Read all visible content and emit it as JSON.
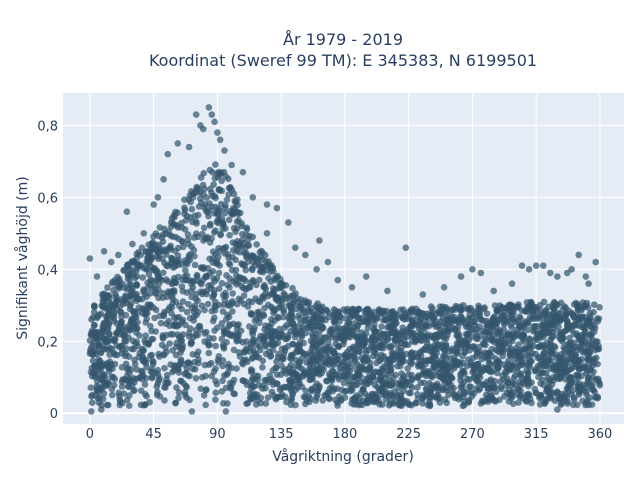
{
  "chart_data": {
    "type": "scatter",
    "title_line1": "År 1979 - 2019",
    "title_line2": "Koordinat (Sweref 99 TM): E 345383, N 6199501",
    "xlabel": "Vågriktning (grader)",
    "ylabel": "Signifikant våghöjd (m)",
    "xlim": [
      -19,
      377
    ],
    "ylim": [
      -0.03,
      0.89
    ],
    "xticks": [
      0,
      45,
      90,
      135,
      180,
      225,
      270,
      315,
      360
    ],
    "xtick_labels": [
      "0",
      "45",
      "90",
      "135",
      "180",
      "225",
      "270",
      "315",
      "360"
    ],
    "yticks": [
      0,
      0.2,
      0.4,
      0.6,
      0.8
    ],
    "ytick_labels": [
      "0",
      "0,2",
      "0,4",
      "0,6",
      "0,8"
    ],
    "grid": true,
    "marker_color": "#34566d",
    "plot_background": "#e5ecf6",
    "envelope": {
      "direction_deg": [
        0,
        15,
        30,
        45,
        60,
        75,
        85,
        90,
        100,
        110,
        120,
        135,
        150,
        165,
        180,
        195,
        225,
        250,
        270,
        290,
        310,
        330,
        345,
        360
      ],
      "max_height_m": [
        0.3,
        0.36,
        0.44,
        0.5,
        0.56,
        0.64,
        0.7,
        0.7,
        0.64,
        0.54,
        0.46,
        0.38,
        0.32,
        0.3,
        0.29,
        0.29,
        0.29,
        0.3,
        0.3,
        0.3,
        0.31,
        0.31,
        0.31,
        0.31
      ],
      "min_height_m": 0.02
    },
    "outlier_points": [
      {
        "x": 75,
        "y": 0.83
      },
      {
        "x": 84,
        "y": 0.85
      },
      {
        "x": 86,
        "y": 0.83
      },
      {
        "x": 88,
        "y": 0.81
      },
      {
        "x": 80,
        "y": 0.79
      },
      {
        "x": 90,
        "y": 0.78
      },
      {
        "x": 70,
        "y": 0.74
      },
      {
        "x": 92,
        "y": 0.76
      },
      {
        "x": 62,
        "y": 0.75
      },
      {
        "x": 55,
        "y": 0.72
      },
      {
        "x": 78,
        "y": 0.8
      },
      {
        "x": 95,
        "y": 0.73
      },
      {
        "x": 108,
        "y": 0.67
      },
      {
        "x": 100,
        "y": 0.69
      },
      {
        "x": 115,
        "y": 0.6
      },
      {
        "x": 125,
        "y": 0.58
      },
      {
        "x": 132,
        "y": 0.57
      },
      {
        "x": 140,
        "y": 0.53
      },
      {
        "x": 145,
        "y": 0.46
      },
      {
        "x": 162,
        "y": 0.48
      },
      {
        "x": 152,
        "y": 0.44
      },
      {
        "x": 168,
        "y": 0.42
      },
      {
        "x": 160,
        "y": 0.4
      },
      {
        "x": 175,
        "y": 0.37
      },
      {
        "x": 185,
        "y": 0.35
      },
      {
        "x": 195,
        "y": 0.38
      },
      {
        "x": 223,
        "y": 0.46
      },
      {
        "x": 210,
        "y": 0.34
      },
      {
        "x": 235,
        "y": 0.33
      },
      {
        "x": 250,
        "y": 0.35
      },
      {
        "x": 262,
        "y": 0.38
      },
      {
        "x": 270,
        "y": 0.4
      },
      {
        "x": 276,
        "y": 0.39
      },
      {
        "x": 285,
        "y": 0.34
      },
      {
        "x": 298,
        "y": 0.36
      },
      {
        "x": 305,
        "y": 0.41
      },
      {
        "x": 310,
        "y": 0.4
      },
      {
        "x": 315,
        "y": 0.41
      },
      {
        "x": 320,
        "y": 0.41
      },
      {
        "x": 325,
        "y": 0.39
      },
      {
        "x": 330,
        "y": 0.38
      },
      {
        "x": 337,
        "y": 0.39
      },
      {
        "x": 340,
        "y": 0.4
      },
      {
        "x": 345,
        "y": 0.44
      },
      {
        "x": 350,
        "y": 0.38
      },
      {
        "x": 357,
        "y": 0.42
      },
      {
        "x": 352,
        "y": 0.36
      },
      {
        "x": 0,
        "y": 0.43
      },
      {
        "x": 5,
        "y": 0.38
      },
      {
        "x": 10,
        "y": 0.45
      },
      {
        "x": 15,
        "y": 0.42
      },
      {
        "x": 20,
        "y": 0.44
      },
      {
        "x": 26,
        "y": 0.56
      },
      {
        "x": 30,
        "y": 0.47
      },
      {
        "x": 38,
        "y": 0.5
      },
      {
        "x": 45,
        "y": 0.58
      },
      {
        "x": 48,
        "y": 0.6
      },
      {
        "x": 52,
        "y": 0.65
      },
      {
        "x": 115,
        "y": 0.49
      },
      {
        "x": 125,
        "y": 0.5
      },
      {
        "x": 1,
        "y": 0.005
      },
      {
        "x": 8,
        "y": 0.01
      },
      {
        "x": 72,
        "y": 0.005
      },
      {
        "x": 96,
        "y": 0.005
      },
      {
        "x": 240,
        "y": 0.02
      },
      {
        "x": 330,
        "y": 0.01
      }
    ]
  }
}
